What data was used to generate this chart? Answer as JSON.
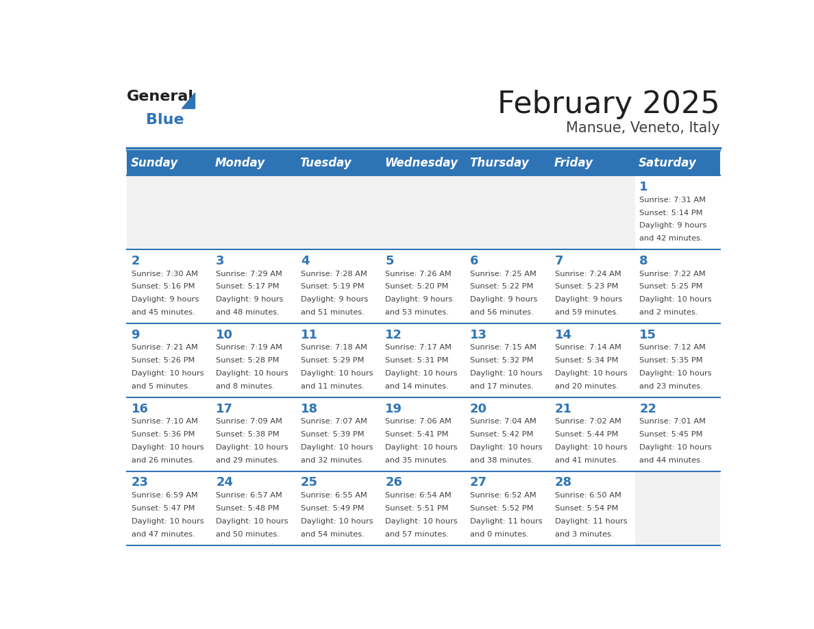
{
  "title": "February 2025",
  "subtitle": "Mansue, Veneto, Italy",
  "header_bg_color": "#2E74B5",
  "header_text_color": "#FFFFFF",
  "cell_bg_color": "#FFFFFF",
  "alt_cell_bg_color": "#F2F2F2",
  "border_color": "#2E74B5",
  "day_names": [
    "Sunday",
    "Monday",
    "Tuesday",
    "Wednesday",
    "Thursday",
    "Friday",
    "Saturday"
  ],
  "title_color": "#1F1F1F",
  "subtitle_color": "#404040",
  "day_num_color": "#2E74B5",
  "cell_text_color": "#404040",
  "logo_triangle_color": "#2E74B5",
  "weeks": [
    [
      {
        "day": null,
        "sunrise": null,
        "sunset": null,
        "daylight": null
      },
      {
        "day": null,
        "sunrise": null,
        "sunset": null,
        "daylight": null
      },
      {
        "day": null,
        "sunrise": null,
        "sunset": null,
        "daylight": null
      },
      {
        "day": null,
        "sunrise": null,
        "sunset": null,
        "daylight": null
      },
      {
        "day": null,
        "sunrise": null,
        "sunset": null,
        "daylight": null
      },
      {
        "day": null,
        "sunrise": null,
        "sunset": null,
        "daylight": null
      },
      {
        "day": 1,
        "sunrise": "7:31 AM",
        "sunset": "5:14 PM",
        "daylight": "9 hours\nand 42 minutes."
      }
    ],
    [
      {
        "day": 2,
        "sunrise": "7:30 AM",
        "sunset": "5:16 PM",
        "daylight": "9 hours\nand 45 minutes."
      },
      {
        "day": 3,
        "sunrise": "7:29 AM",
        "sunset": "5:17 PM",
        "daylight": "9 hours\nand 48 minutes."
      },
      {
        "day": 4,
        "sunrise": "7:28 AM",
        "sunset": "5:19 PM",
        "daylight": "9 hours\nand 51 minutes."
      },
      {
        "day": 5,
        "sunrise": "7:26 AM",
        "sunset": "5:20 PM",
        "daylight": "9 hours\nand 53 minutes."
      },
      {
        "day": 6,
        "sunrise": "7:25 AM",
        "sunset": "5:22 PM",
        "daylight": "9 hours\nand 56 minutes."
      },
      {
        "day": 7,
        "sunrise": "7:24 AM",
        "sunset": "5:23 PM",
        "daylight": "9 hours\nand 59 minutes."
      },
      {
        "day": 8,
        "sunrise": "7:22 AM",
        "sunset": "5:25 PM",
        "daylight": "10 hours\nand 2 minutes."
      }
    ],
    [
      {
        "day": 9,
        "sunrise": "7:21 AM",
        "sunset": "5:26 PM",
        "daylight": "10 hours\nand 5 minutes."
      },
      {
        "day": 10,
        "sunrise": "7:19 AM",
        "sunset": "5:28 PM",
        "daylight": "10 hours\nand 8 minutes."
      },
      {
        "day": 11,
        "sunrise": "7:18 AM",
        "sunset": "5:29 PM",
        "daylight": "10 hours\nand 11 minutes."
      },
      {
        "day": 12,
        "sunrise": "7:17 AM",
        "sunset": "5:31 PM",
        "daylight": "10 hours\nand 14 minutes."
      },
      {
        "day": 13,
        "sunrise": "7:15 AM",
        "sunset": "5:32 PM",
        "daylight": "10 hours\nand 17 minutes."
      },
      {
        "day": 14,
        "sunrise": "7:14 AM",
        "sunset": "5:34 PM",
        "daylight": "10 hours\nand 20 minutes."
      },
      {
        "day": 15,
        "sunrise": "7:12 AM",
        "sunset": "5:35 PM",
        "daylight": "10 hours\nand 23 minutes."
      }
    ],
    [
      {
        "day": 16,
        "sunrise": "7:10 AM",
        "sunset": "5:36 PM",
        "daylight": "10 hours\nand 26 minutes."
      },
      {
        "day": 17,
        "sunrise": "7:09 AM",
        "sunset": "5:38 PM",
        "daylight": "10 hours\nand 29 minutes."
      },
      {
        "day": 18,
        "sunrise": "7:07 AM",
        "sunset": "5:39 PM",
        "daylight": "10 hours\nand 32 minutes."
      },
      {
        "day": 19,
        "sunrise": "7:06 AM",
        "sunset": "5:41 PM",
        "daylight": "10 hours\nand 35 minutes."
      },
      {
        "day": 20,
        "sunrise": "7:04 AM",
        "sunset": "5:42 PM",
        "daylight": "10 hours\nand 38 minutes."
      },
      {
        "day": 21,
        "sunrise": "7:02 AM",
        "sunset": "5:44 PM",
        "daylight": "10 hours\nand 41 minutes."
      },
      {
        "day": 22,
        "sunrise": "7:01 AM",
        "sunset": "5:45 PM",
        "daylight": "10 hours\nand 44 minutes."
      }
    ],
    [
      {
        "day": 23,
        "sunrise": "6:59 AM",
        "sunset": "5:47 PM",
        "daylight": "10 hours\nand 47 minutes."
      },
      {
        "day": 24,
        "sunrise": "6:57 AM",
        "sunset": "5:48 PM",
        "daylight": "10 hours\nand 50 minutes."
      },
      {
        "day": 25,
        "sunrise": "6:55 AM",
        "sunset": "5:49 PM",
        "daylight": "10 hours\nand 54 minutes."
      },
      {
        "day": 26,
        "sunrise": "6:54 AM",
        "sunset": "5:51 PM",
        "daylight": "10 hours\nand 57 minutes."
      },
      {
        "day": 27,
        "sunrise": "6:52 AM",
        "sunset": "5:52 PM",
        "daylight": "11 hours\nand 0 minutes."
      },
      {
        "day": 28,
        "sunrise": "6:50 AM",
        "sunset": "5:54 PM",
        "daylight": "11 hours\nand 3 minutes."
      },
      {
        "day": null,
        "sunrise": null,
        "sunset": null,
        "daylight": null
      }
    ]
  ]
}
